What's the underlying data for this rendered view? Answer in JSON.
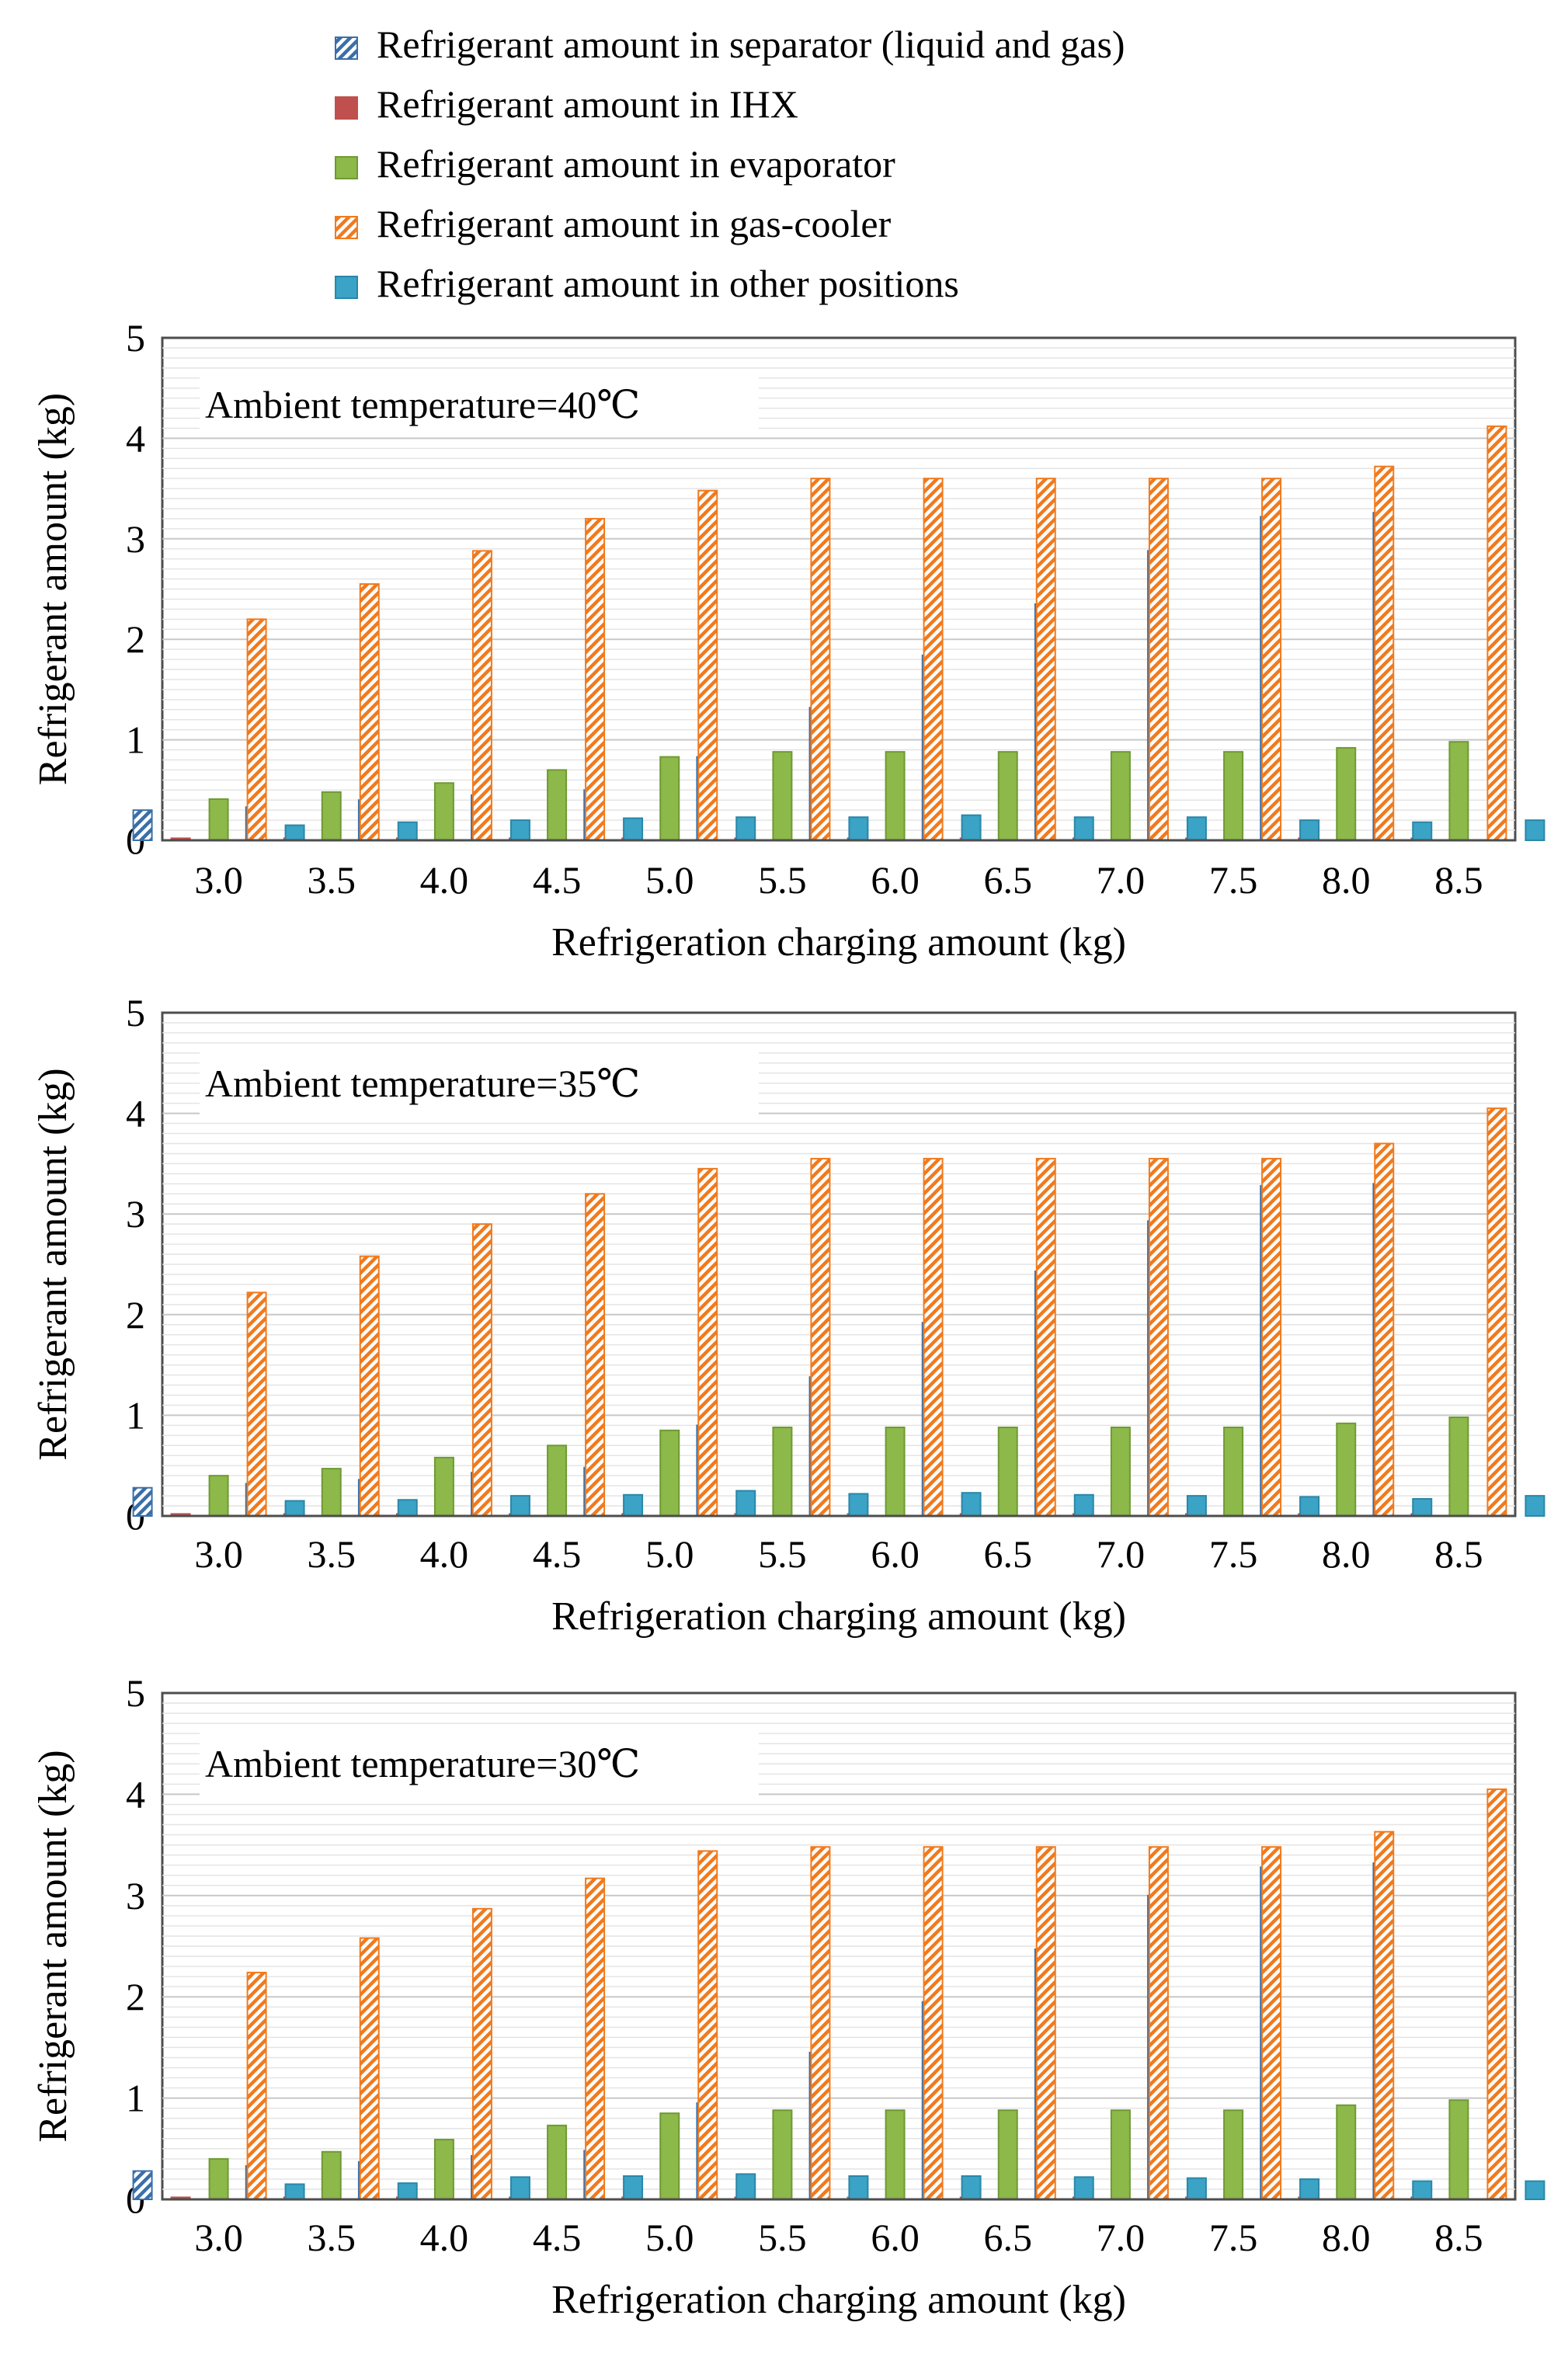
{
  "legend": [
    {
      "key": "separator",
      "label": "Refrigerant amount in separator (liquid and gas)"
    },
    {
      "key": "ihx",
      "label": "Refrigerant amount in IHX"
    },
    {
      "key": "evaporator",
      "label": "Refrigerant amount in evaporator"
    },
    {
      "key": "gascooler",
      "label": "Refrigerant amount in gas-cooler"
    },
    {
      "key": "other",
      "label": "Refrigerant amount in other positions"
    }
  ],
  "colors": {
    "separator": "#3a6fa8",
    "ihx": "#c0504d",
    "evaporator": "#8db84a",
    "gascooler": "#f07a1e",
    "other": "#3aa3c6",
    "grid": "#d9d9d9",
    "frame": "#4d4d4d"
  },
  "chart_data": [
    {
      "type": "bar",
      "title": "",
      "annotation": "Ambient temperature=40℃",
      "xlabel": "Refrigeration charging amount (kg)",
      "ylabel": "Refrigerant amount (kg)",
      "ylim": [
        0,
        5
      ],
      "yticks": [
        "0",
        "1",
        "2",
        "3",
        "4",
        "5"
      ],
      "categories": [
        "3.0",
        "3.5",
        "4.0",
        "4.5",
        "5.0",
        "5.5",
        "6.0",
        "6.5",
        "7.0",
        "7.5",
        "8.0",
        "8.5"
      ],
      "series": [
        {
          "key": "separator",
          "name": "Refrigerant amount in separator (liquid and gas)",
          "values": [
            0.3,
            0.33,
            0.4,
            0.45,
            0.5,
            0.83,
            1.32,
            1.84,
            2.35,
            2.88,
            3.22,
            3.26
          ]
        },
        {
          "key": "ihx",
          "name": "Refrigerant amount in IHX",
          "values": [
            0.02,
            0.02,
            0.02,
            0.02,
            0.02,
            0.02,
            0.02,
            0.02,
            0.02,
            0.02,
            0.02,
            0.02
          ]
        },
        {
          "key": "evaporator",
          "name": "Refrigerant amount in evaporator",
          "values": [
            0.41,
            0.48,
            0.57,
            0.7,
            0.83,
            0.88,
            0.88,
            0.88,
            0.88,
            0.88,
            0.92,
            0.98
          ]
        },
        {
          "key": "gascooler",
          "name": "Refrigerant amount in gas-cooler",
          "values": [
            2.2,
            2.55,
            2.88,
            3.2,
            3.48,
            3.6,
            3.6,
            3.6,
            3.6,
            3.6,
            3.72,
            4.12
          ]
        },
        {
          "key": "other",
          "name": "Refrigerant amount in other positions",
          "values": [
            0.15,
            0.18,
            0.2,
            0.22,
            0.23,
            0.23,
            0.25,
            0.23,
            0.23,
            0.2,
            0.18,
            0.2
          ]
        }
      ]
    },
    {
      "type": "bar",
      "title": "",
      "annotation": "Ambient temperature=35℃",
      "xlabel": "Refrigeration charging amount (kg)",
      "ylabel": "Refrigerant amount (kg)",
      "ylim": [
        0,
        5
      ],
      "yticks": [
        "0",
        "1",
        "2",
        "3",
        "4",
        "5"
      ],
      "categories": [
        "3.0",
        "3.5",
        "4.0",
        "4.5",
        "5.0",
        "5.5",
        "6.0",
        "6.5",
        "7.0",
        "7.5",
        "8.0",
        "8.5"
      ],
      "series": [
        {
          "key": "separator",
          "name": "Refrigerant amount in separator (liquid and gas)",
          "values": [
            0.28,
            0.32,
            0.36,
            0.43,
            0.48,
            0.9,
            1.38,
            1.92,
            2.43,
            2.93,
            3.28,
            3.3
          ]
        },
        {
          "key": "ihx",
          "name": "Refrigerant amount in IHX",
          "values": [
            0.02,
            0.02,
            0.02,
            0.02,
            0.02,
            0.02,
            0.02,
            0.02,
            0.02,
            0.02,
            0.02,
            0.02
          ]
        },
        {
          "key": "evaporator",
          "name": "Refrigerant amount in evaporator",
          "values": [
            0.4,
            0.47,
            0.58,
            0.7,
            0.85,
            0.88,
            0.88,
            0.88,
            0.88,
            0.88,
            0.92,
            0.98
          ]
        },
        {
          "key": "gascooler",
          "name": "Refrigerant amount in gas-cooler",
          "values": [
            2.22,
            2.58,
            2.9,
            3.2,
            3.45,
            3.55,
            3.55,
            3.55,
            3.55,
            3.55,
            3.7,
            4.05
          ]
        },
        {
          "key": "other",
          "name": "Refrigerant amount in other positions",
          "values": [
            0.15,
            0.16,
            0.2,
            0.21,
            0.25,
            0.22,
            0.23,
            0.21,
            0.2,
            0.19,
            0.17,
            0.2
          ]
        }
      ]
    },
    {
      "type": "bar",
      "title": "",
      "annotation": "Ambient temperature=30℃",
      "xlabel": "Refrigeration charging amount (kg)",
      "ylabel": "Refrigerant amount (kg)",
      "ylim": [
        0,
        5
      ],
      "yticks": [
        "0",
        "1",
        "2",
        "3",
        "4",
        "5"
      ],
      "categories": [
        "3.0",
        "3.5",
        "4.0",
        "4.5",
        "5.0",
        "5.5",
        "6.0",
        "6.5",
        "7.0",
        "7.5",
        "8.0",
        "8.5"
      ],
      "series": [
        {
          "key": "separator",
          "name": "Refrigerant amount in separator (liquid and gas)",
          "values": [
            0.28,
            0.33,
            0.37,
            0.43,
            0.48,
            0.95,
            1.45,
            1.95,
            2.47,
            3.0,
            3.28,
            3.32
          ]
        },
        {
          "key": "ihx",
          "name": "Refrigerant amount in IHX",
          "values": [
            0.02,
            0.02,
            0.02,
            0.02,
            0.02,
            0.02,
            0.02,
            0.02,
            0.02,
            0.02,
            0.02,
            0.02
          ]
        },
        {
          "key": "evaporator",
          "name": "Refrigerant amount in evaporator",
          "values": [
            0.4,
            0.47,
            0.59,
            0.73,
            0.85,
            0.88,
            0.88,
            0.88,
            0.88,
            0.88,
            0.93,
            0.98
          ]
        },
        {
          "key": "gascooler",
          "name": "Refrigerant amount in gas-cooler",
          "values": [
            2.24,
            2.58,
            2.87,
            3.17,
            3.44,
            3.48,
            3.48,
            3.48,
            3.48,
            3.48,
            3.63,
            4.05
          ]
        },
        {
          "key": "other",
          "name": "Refrigerant amount in other positions",
          "values": [
            0.15,
            0.16,
            0.22,
            0.23,
            0.25,
            0.23,
            0.23,
            0.22,
            0.21,
            0.2,
            0.18,
            0.18
          ]
        }
      ]
    }
  ]
}
